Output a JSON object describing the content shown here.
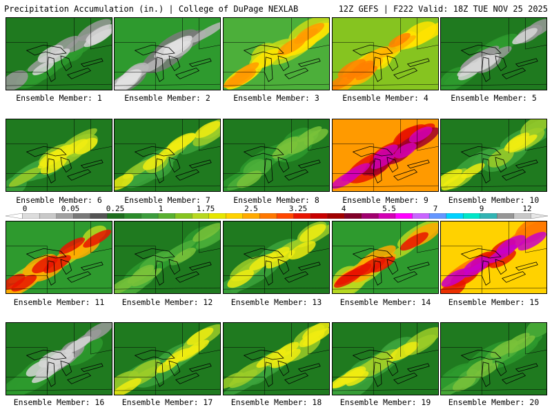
{
  "header": {
    "left": "Precipitation Accumulation (in.) | College of DuPage NEXLAB",
    "right": "12Z GEFS | F222 Valid: 18Z TUE NOV 25 2025"
  },
  "members": [
    {
      "label": "Ensemble Member: 1",
      "theme": "green-gray"
    },
    {
      "label": "Ensemble Member: 2",
      "theme": "gray"
    },
    {
      "label": "Ensemble Member: 3",
      "theme": "yellow-orange"
    },
    {
      "label": "Ensemble Member: 4",
      "theme": "orange"
    },
    {
      "label": "Ensemble Member: 5",
      "theme": "green-gray"
    },
    {
      "label": "Ensemble Member: 6",
      "theme": "green-yellow"
    },
    {
      "label": "Ensemble Member: 7",
      "theme": "green-yellow"
    },
    {
      "label": "Ensemble Member: 8",
      "theme": "green"
    },
    {
      "label": "Ensemble Member: 9",
      "theme": "red-magenta"
    },
    {
      "label": "Ensemble Member: 10",
      "theme": "green-yellow"
    },
    {
      "label": "Ensemble Member: 11",
      "theme": "yellow-red"
    },
    {
      "label": "Ensemble Member: 12",
      "theme": "green"
    },
    {
      "label": "Ensemble Member: 13",
      "theme": "green-yellow"
    },
    {
      "label": "Ensemble Member: 14",
      "theme": "yellow-red"
    },
    {
      "label": "Ensemble Member: 15",
      "theme": "orange-magenta"
    },
    {
      "label": "Ensemble Member: 16",
      "theme": "green-gray"
    },
    {
      "label": "Ensemble Member: 17",
      "theme": "green-yellow"
    },
    {
      "label": "Ensemble Member: 18",
      "theme": "green-yellow"
    },
    {
      "label": "Ensemble Member: 19",
      "theme": "green-yellow"
    },
    {
      "label": "Ensemble Member: 20",
      "theme": "green"
    }
  ],
  "colorbar": {
    "labels": [
      "0",
      "0.05",
      "0.25",
      "1",
      "1.75",
      "2.5",
      "3.25",
      "4",
      "5.5",
      "7",
      "9",
      "12"
    ],
    "colors": [
      "#ffffff",
      "#dcdcdc",
      "#c8c8c8",
      "#a0a0a0",
      "#787878",
      "#545454",
      "#1e6e1e",
      "#2b8c2b",
      "#3c9c3c",
      "#58b030",
      "#86c420",
      "#b8d820",
      "#e6e600",
      "#ffd200",
      "#ffaa00",
      "#ff7800",
      "#ff4600",
      "#e81400",
      "#c80000",
      "#a00000",
      "#800028",
      "#a0006e",
      "#d200b4",
      "#ff00ff",
      "#c864ff",
      "#6496ff",
      "#00d2ff",
      "#00e6c8",
      "#32b4b4",
      "#969696",
      "#c8c8c8",
      "#e6e6e6"
    ]
  }
}
